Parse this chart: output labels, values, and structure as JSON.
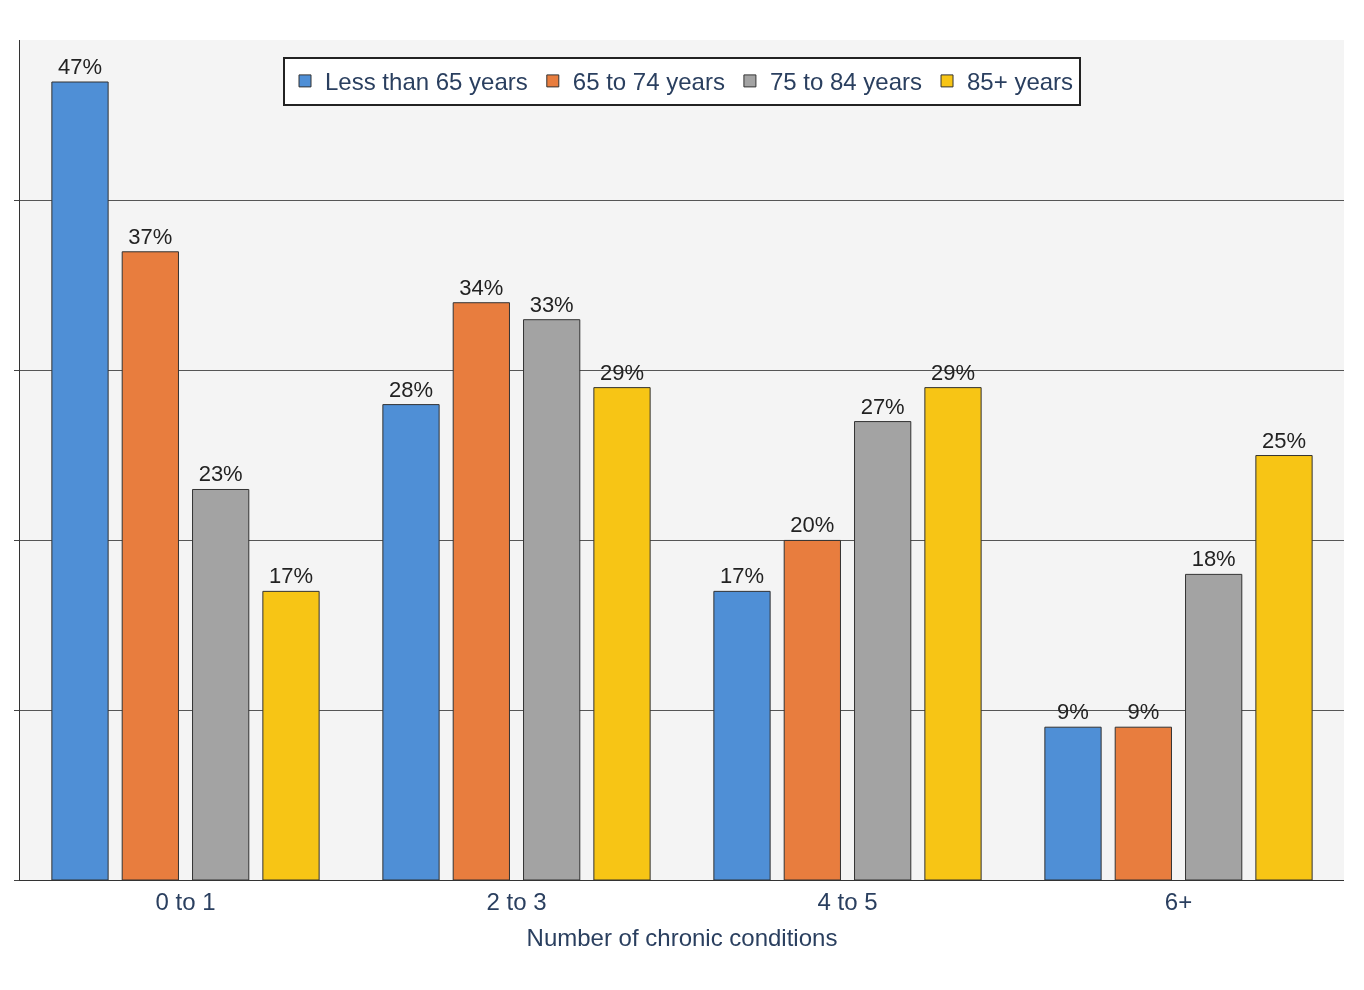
{
  "chart_data": {
    "type": "bar",
    "xlabel": "Number of chronic conditions",
    "categories": [
      "0 to 1",
      "2 to 3",
      "4 to 5",
      "6+"
    ],
    "series": [
      {
        "name": "Less than 65 years",
        "color": "#4f8fd6",
        "values": [
          47,
          28,
          17,
          9
        ],
        "value_labels": [
          "47%",
          "28%",
          "17%",
          "9%"
        ]
      },
      {
        "name": "65 to 74 years",
        "color": "#e87d3e",
        "values": [
          37,
          34,
          20,
          9
        ],
        "value_labels": [
          "37%",
          "34%",
          "20%",
          "9%"
        ]
      },
      {
        "name": "75 to 84 years",
        "color": "#a3a3a3",
        "values": [
          23,
          33,
          27,
          18
        ],
        "value_labels": [
          "23%",
          "33%",
          "27%",
          "18%"
        ]
      },
      {
        "name": "85+ years",
        "color": "#f7c515",
        "values": [
          17,
          29,
          29,
          25
        ],
        "value_labels": [
          "17%",
          "29%",
          "29%",
          "25%"
        ]
      }
    ],
    "grid": "y",
    "legend": "top",
    "tick_labels": "x"
  }
}
